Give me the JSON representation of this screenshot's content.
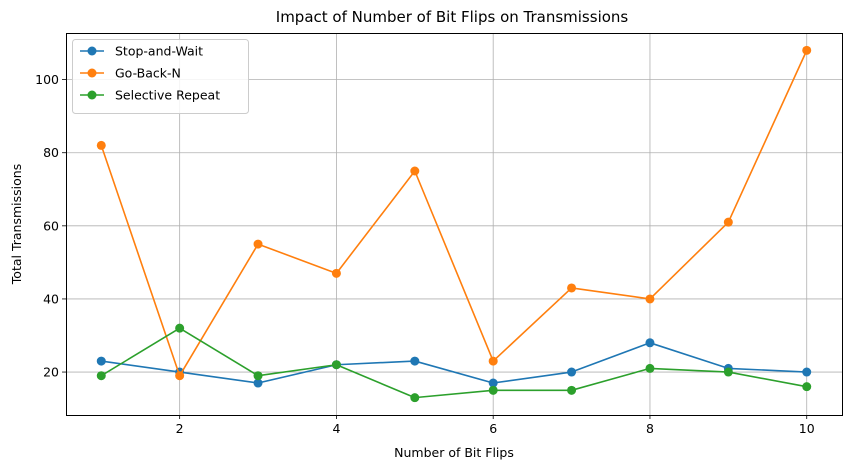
{
  "chart_data": {
    "type": "line",
    "title": "Impact of Number of Bit Flips on Transmissions",
    "xlabel": "Number of Bit Flips",
    "ylabel": "Total Transmissions",
    "x": [
      1,
      2,
      3,
      4,
      5,
      6,
      7,
      8,
      9,
      10
    ],
    "xlim": [
      0.55,
      10.45
    ],
    "ylim": [
      8.25,
      112.75
    ],
    "xticks": [
      2,
      4,
      6,
      8,
      10
    ],
    "yticks": [
      20,
      40,
      60,
      80,
      100
    ],
    "grid": true,
    "legend_position": "top-left",
    "series": [
      {
        "name": "Stop-and-Wait",
        "color": "#1f77b4",
        "values": [
          23,
          20,
          17,
          22,
          23,
          17,
          20,
          28,
          21,
          20
        ]
      },
      {
        "name": "Go-Back-N",
        "color": "#ff7f0e",
        "values": [
          82,
          19,
          55,
          47,
          75,
          23,
          43,
          40,
          61,
          108
        ]
      },
      {
        "name": "Selective Repeat",
        "color": "#2ca02c",
        "values": [
          19,
          32,
          19,
          22,
          13,
          15,
          15,
          21,
          20,
          16
        ]
      }
    ]
  }
}
